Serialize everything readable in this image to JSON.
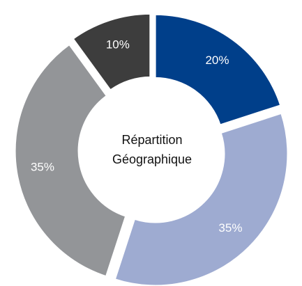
{
  "chart_data": {
    "type": "donut",
    "center_text": [
      "Répartition",
      "Géographique"
    ],
    "categories": [
      null,
      null,
      null,
      null
    ],
    "values": [
      20,
      35,
      35,
      10
    ],
    "value_labels": [
      "20%",
      "35%",
      "35%",
      "10%"
    ],
    "colors": [
      "#003f8a",
      "#9eabd1",
      "#939598",
      "#3d3d3d"
    ]
  }
}
